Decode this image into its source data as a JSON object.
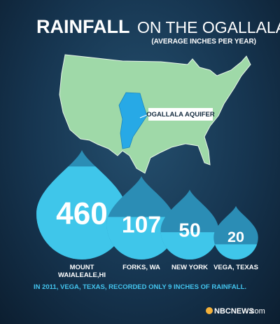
{
  "chart_data": {
    "type": "drop",
    "title": "RAINFALL",
    "title_rest": "ON THE OGALLALA",
    "subtitle": "(AVERAGE INCHES PER YEAR)",
    "annotation": "OGALLALA AQUIFER",
    "categories": [
      "MOUNT WAIALEALE,HI",
      "FORKS, WA",
      "NEW YORK",
      "VEGA, TEXAS"
    ],
    "values": [
      460,
      107,
      50,
      20
    ],
    "color": "#2b8db5",
    "fill_color": "#3fc6ea",
    "note": "IN 2011, VEGA, TEXAS, RECORDED ONLY 9 INCHES OF RAINFALL.",
    "source": "NBCNEWS",
    "source_suffix": ".com"
  }
}
